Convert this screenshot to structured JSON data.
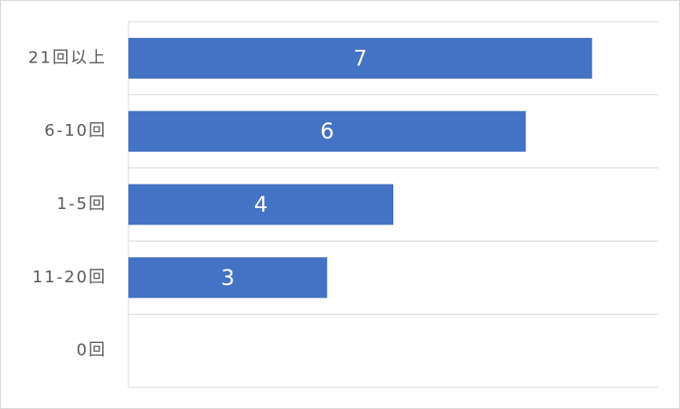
{
  "chart_data": {
    "type": "bar",
    "orientation": "horizontal",
    "categories": [
      "21回以上",
      "6-10回",
      "1-5回",
      "11-20回",
      "0回"
    ],
    "values": [
      7,
      6,
      4,
      3,
      0
    ],
    "value_labels": [
      "7",
      "6",
      "4",
      "3",
      null
    ],
    "color": "#4472c4",
    "xlim": [
      0,
      8
    ]
  }
}
